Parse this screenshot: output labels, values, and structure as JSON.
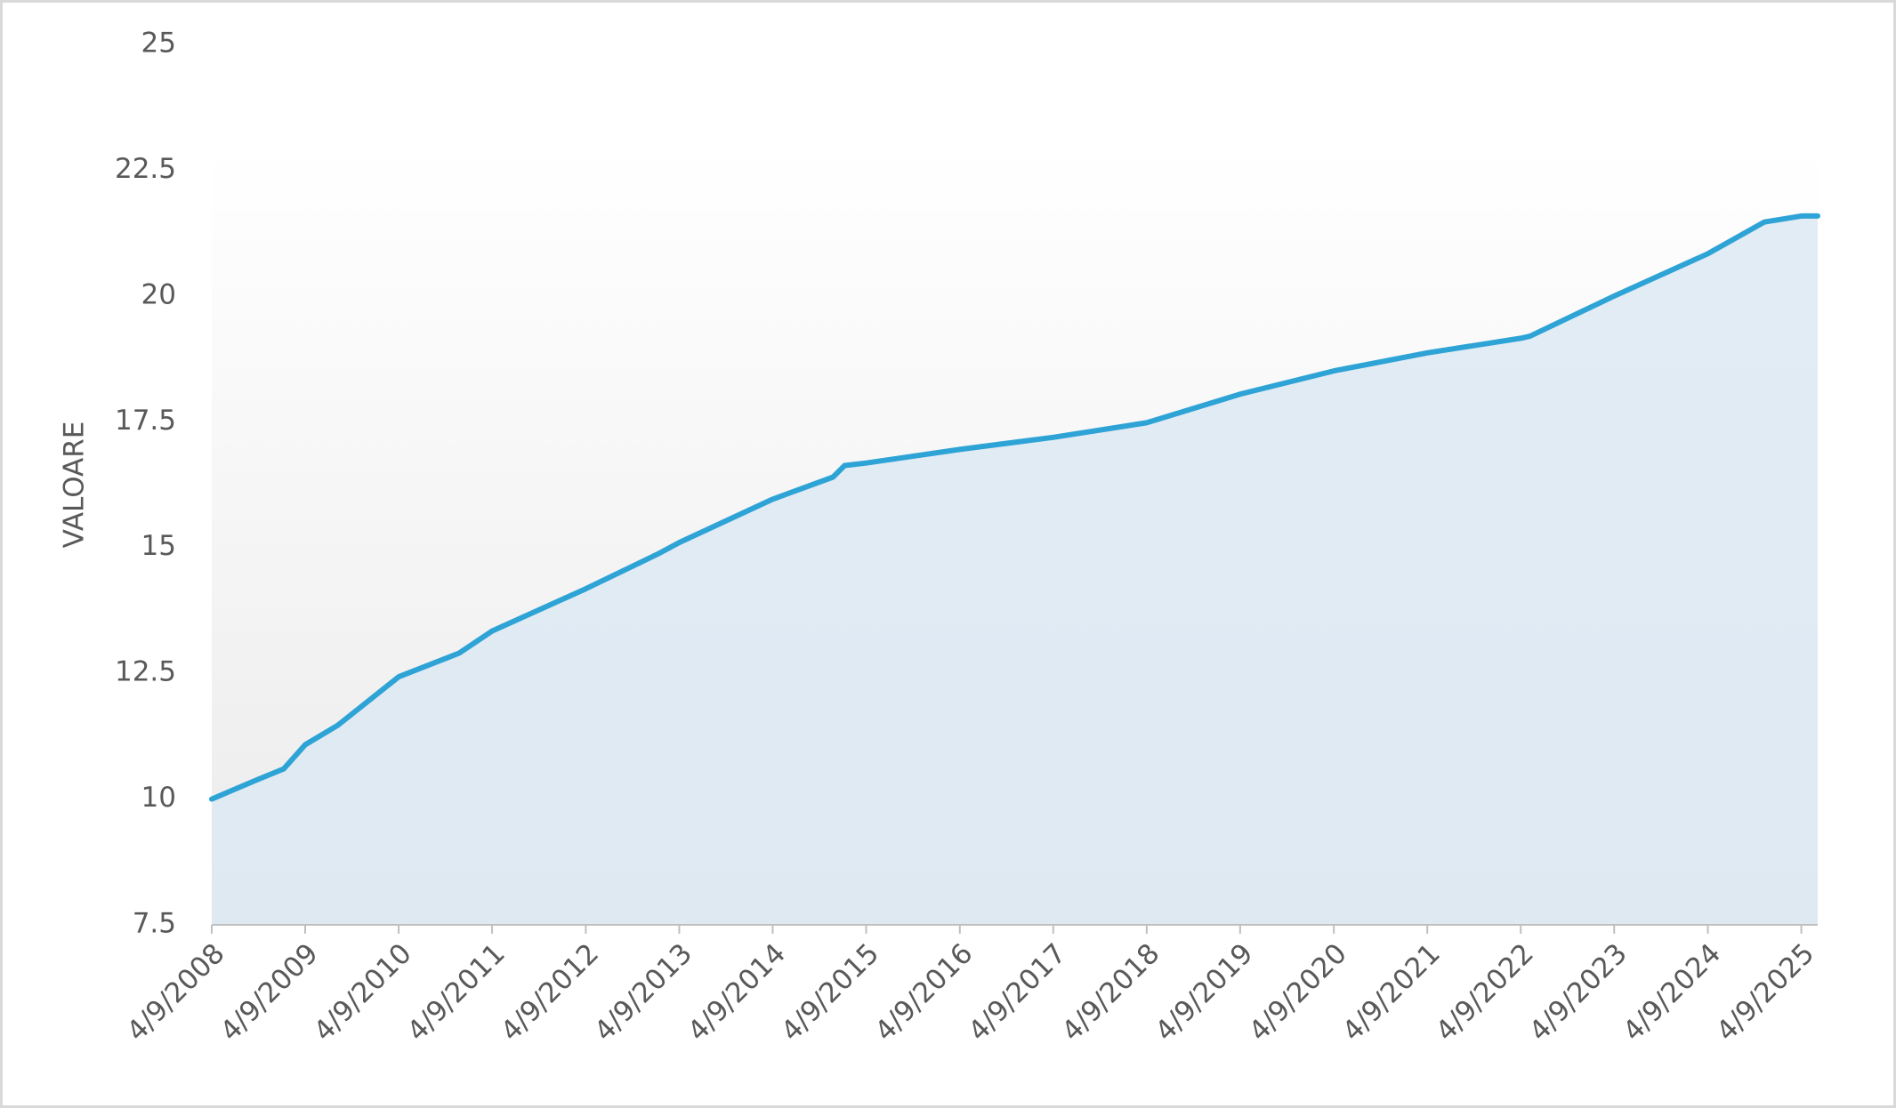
{
  "chart_data": {
    "type": "area",
    "y_label": "VALOARE",
    "x": [
      "4/9/2008",
      "10/1/2008",
      "1/15/2009",
      "4/9/2009",
      "8/15/2009",
      "4/9/2010",
      "12/1/2010",
      "4/9/2011",
      "4/9/2012",
      "1/15/2013",
      "4/9/2013",
      "4/9/2014",
      "12/1/2014",
      "1/15/2015",
      "4/9/2015",
      "4/9/2016",
      "4/9/2017",
      "4/9/2018",
      "4/9/2019",
      "4/9/2020",
      "4/9/2021",
      "4/9/2022",
      "5/15/2022",
      "4/9/2023",
      "4/9/2024",
      "11/15/2024",
      "4/9/2025",
      "6/12/2025"
    ],
    "values": [
      10.0,
      10.38,
      10.6,
      11.08,
      11.47,
      12.43,
      12.9,
      13.34,
      14.18,
      14.87,
      15.1,
      15.96,
      16.4,
      16.63,
      16.68,
      16.95,
      17.19,
      17.48,
      18.05,
      18.51,
      18.87,
      19.16,
      19.2,
      20.0,
      20.84,
      21.47,
      21.59,
      21.59
    ],
    "color": "#2ea3d6",
    "area_color": "#dde9f3",
    "xlim": [
      "4/9/2008",
      "6/12/2025"
    ],
    "xticks": [
      "4/9/2008",
      "4/9/2009",
      "4/9/2010",
      "4/9/2011",
      "4/9/2012",
      "4/9/2013",
      "4/9/2014",
      "4/9/2015",
      "4/9/2016",
      "4/9/2017",
      "4/9/2018",
      "4/9/2019",
      "4/9/2020",
      "4/9/2021",
      "4/9/2022",
      "4/9/2023",
      "4/9/2024",
      "4/9/2025"
    ],
    "ylim": [
      7.5,
      25
    ],
    "yticks": [
      7.5,
      10,
      12.5,
      15,
      17.5,
      20,
      22.5,
      25
    ],
    "grid": false
  }
}
